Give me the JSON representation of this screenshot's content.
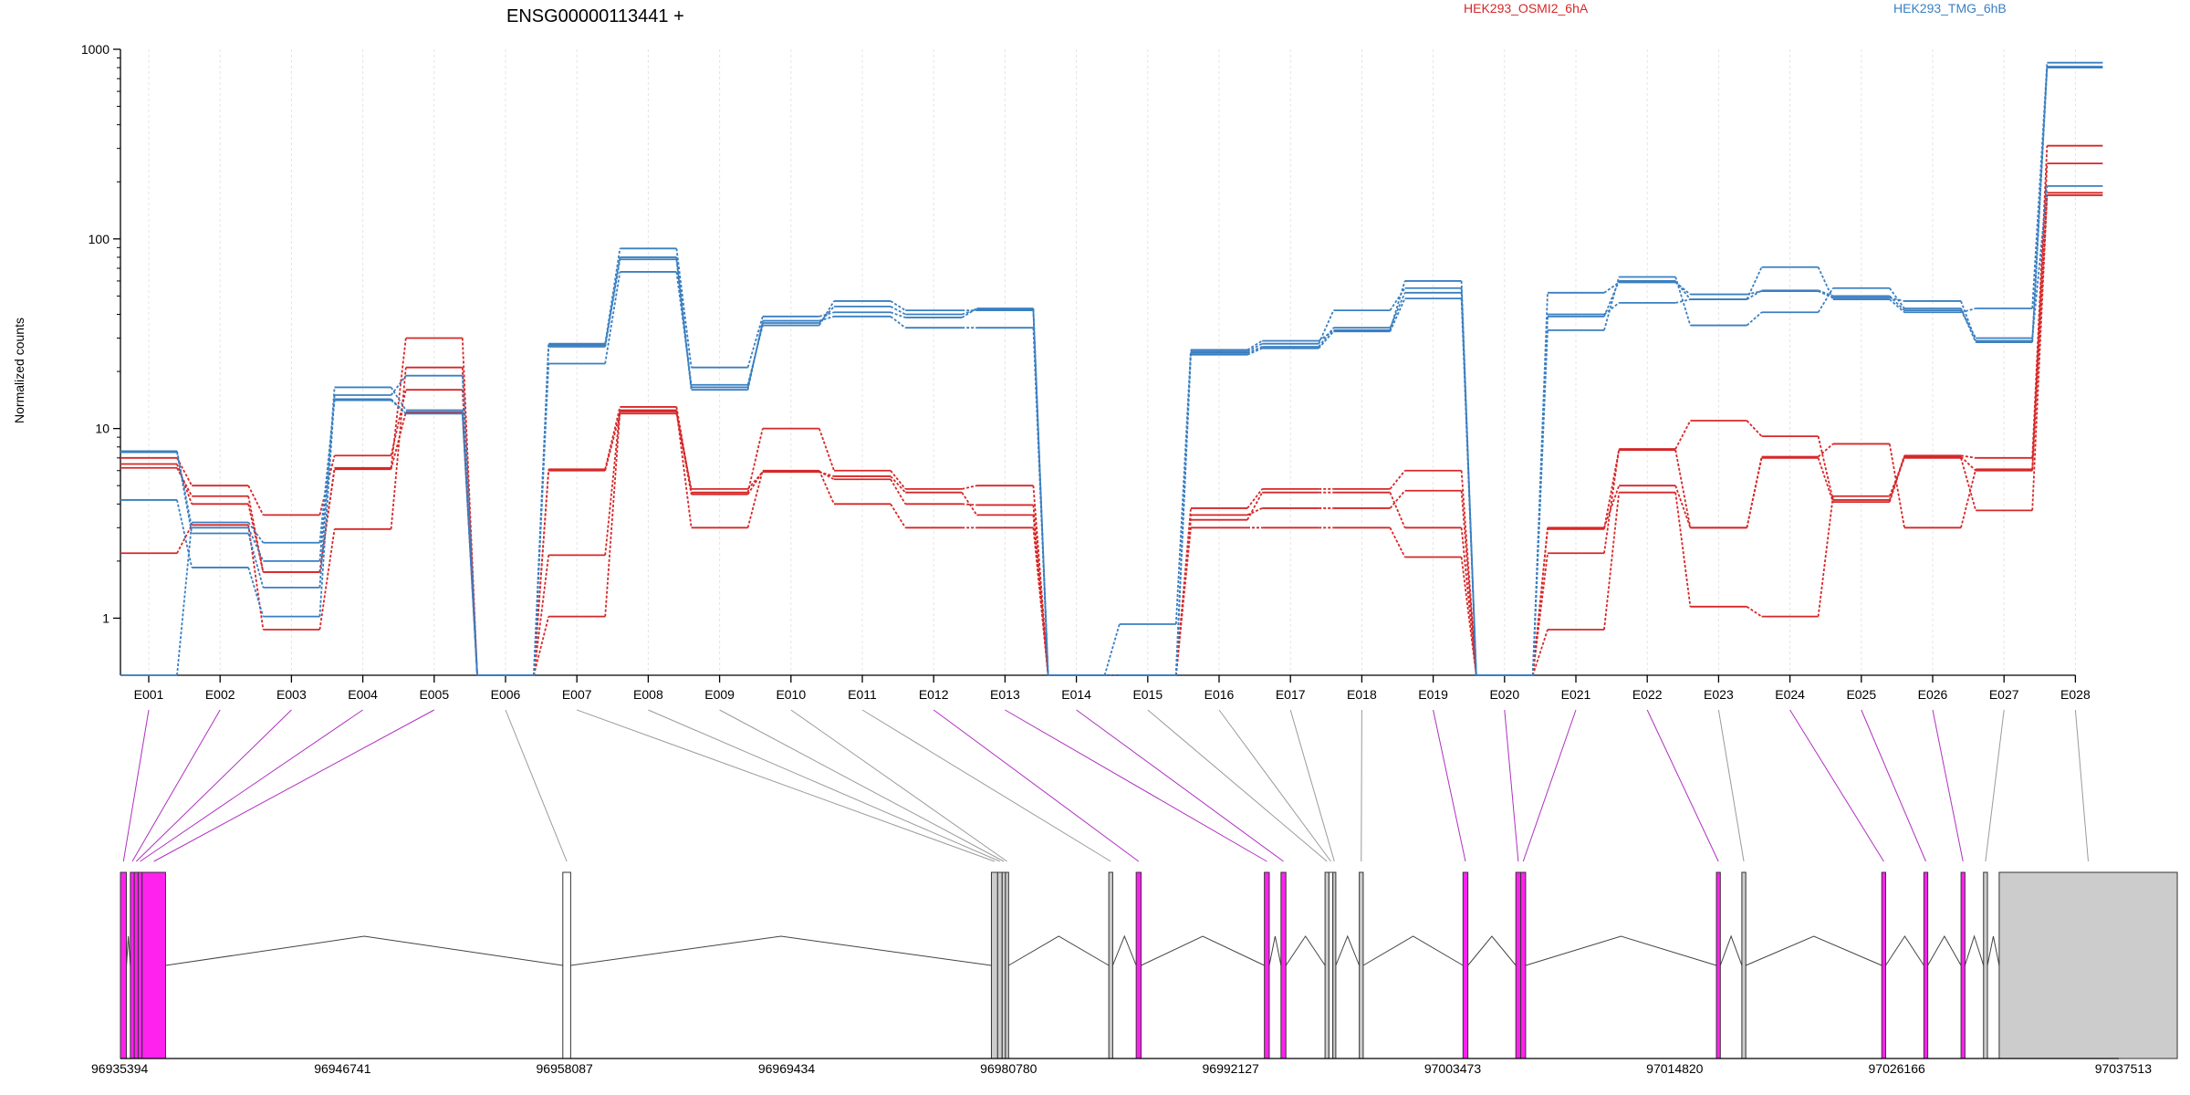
{
  "chart_data": {
    "type": "line",
    "title": "ENSG00000113441 +",
    "ylabel": "Normalized counts",
    "yscale": "log",
    "ylim": [
      0.5,
      1000
    ],
    "yticks": [
      1,
      10,
      100,
      1000
    ],
    "yticklabels": [
      "1",
      "10",
      "100",
      "1000"
    ],
    "categories": [
      "E001",
      "E002",
      "E003",
      "E004",
      "E005",
      "E006",
      "E007",
      "E008",
      "E009",
      "E010",
      "E011",
      "E012",
      "E013",
      "E014",
      "E015",
      "E016",
      "E017",
      "E018",
      "E019",
      "E020",
      "E021",
      "E022",
      "E023",
      "E024",
      "E025",
      "E026",
      "E027",
      "E028"
    ],
    "colors": {
      "HEK293_OSMI2_6hA": "#d62728",
      "HEK293_TMG_6hB": "#3a7fc1",
      "spliced_exon": "#ff22ee",
      "unspliced_exon": "#cccccc"
    },
    "legend": [
      "HEK293_OSMI2_6hA",
      "HEK293_TMG_6hB"
    ],
    "series": [
      {
        "group": "HEK293_OSMI2_6hA",
        "values": [
          6.2,
          4.4,
          1.75,
          6.1,
          12.2,
          0.5,
          1.02,
          12.3,
          4.5,
          5.95,
          5.4,
          4.0,
          3.95,
          0.5,
          0.5,
          3.5,
          3.8,
          3.8,
          4.7,
          0.5,
          0.87,
          4.6,
          1.15,
          1.02,
          4.4,
          7.0,
          3.7,
          170
        ]
      },
      {
        "group": "HEK293_OSMI2_6hA",
        "values": [
          2.2,
          3.1,
          0.87,
          2.95,
          21.0,
          0.5,
          2.15,
          12.5,
          3.0,
          6.0,
          4.0,
          3.0,
          3.0,
          0.5,
          0.5,
          3.0,
          3.0,
          3.0,
          2.1,
          0.5,
          3.0,
          5.0,
          3.0,
          7.1,
          8.3,
          3.0,
          6.1,
          250
        ]
      },
      {
        "group": "HEK293_OSMI2_6hA",
        "values": [
          7.0,
          5.0,
          3.5,
          7.2,
          16.0,
          0.5,
          6.1,
          13.0,
          4.6,
          10.0,
          6.0,
          4.8,
          5.0,
          0.5,
          0.5,
          3.8,
          4.8,
          4.8,
          6.0,
          0.5,
          2.2,
          7.8,
          11.0,
          9.1,
          4.2,
          7.2,
          7.0,
          310
        ]
      },
      {
        "group": "HEK293_OSMI2_6hA",
        "values": [
          6.5,
          4.0,
          1.75,
          6.2,
          30.0,
          0.5,
          6.0,
          12.0,
          4.8,
          5.9,
          5.6,
          4.6,
          3.5,
          0.5,
          0.5,
          3.3,
          4.6,
          4.6,
          3.0,
          0.5,
          2.95,
          7.7,
          3.0,
          7.0,
          4.1,
          7.1,
          6.0,
          175
        ]
      },
      {
        "group": "HEK293_TMG_6hB",
        "values": [
          0.5,
          3.2,
          2.5,
          14.1,
          12.0,
          0.5,
          28.0,
          89.0,
          21.0,
          39.0,
          41.0,
          38.5,
          43.0,
          0.5,
          0.93,
          26.0,
          29.0,
          33.0,
          60.0,
          0.5,
          52.0,
          59.0,
          51.0,
          53.0,
          49.0,
          47.0,
          29.0,
          800
        ]
      },
      {
        "group": "HEK293_TMG_6hB",
        "values": [
          7.5,
          2.8,
          1.45,
          16.5,
          12.5,
          0.5,
          22.0,
          67.0,
          17.0,
          35.0,
          47.0,
          42.0,
          42.0,
          0.5,
          0.5,
          24.5,
          26.5,
          32.5,
          48.5,
          0.5,
          33.0,
          63.0,
          35.0,
          41.0,
          55.0,
          43.0,
          28.5,
          810
        ]
      },
      {
        "group": "HEK293_TMG_6hB",
        "values": [
          4.2,
          1.85,
          1.02,
          15.0,
          19.0,
          0.5,
          27.0,
          78.0,
          16.0,
          37.0,
          39.0,
          34.0,
          34.0,
          0.5,
          0.5,
          25.5,
          28.0,
          42.0,
          55.0,
          0.5,
          40.0,
          46.0,
          48.0,
          71.0,
          48.0,
          41.0,
          43.0,
          850
        ]
      },
      {
        "group": "HEK293_TMG_6hB",
        "values": [
          7.6,
          3.0,
          2.0,
          14.3,
          12.0,
          0.5,
          27.5,
          80.0,
          16.5,
          36.0,
          44.0,
          40.0,
          42.5,
          0.5,
          0.5,
          25.0,
          27.0,
          34.0,
          52.0,
          0.5,
          39.0,
          60.0,
          48.0,
          53.5,
          50.0,
          42.0,
          30.0,
          190
        ]
      }
    ],
    "gene_model": {
      "genomic_ticks": [
        "96935394",
        "96946741",
        "96958087",
        "96969434",
        "96980780",
        "96992127",
        "97003473",
        "97014820",
        "97026166",
        "97037513"
      ],
      "exons": [
        {
          "id": "E001",
          "start": 96935394,
          "end": 96935700,
          "color": "spliced_exon"
        },
        {
          "id": "E002",
          "start": 96935900,
          "end": 96936100,
          "color": "spliced_exon"
        },
        {
          "id": "E003",
          "start": 96936100,
          "end": 96936300,
          "color": "spliced_exon"
        },
        {
          "id": "E004",
          "start": 96936300,
          "end": 96936500,
          "color": "spliced_exon"
        },
        {
          "id": "E005",
          "start": 96936500,
          "end": 96937700,
          "color": "spliced_exon"
        },
        {
          "id": "E006",
          "start": 96958000,
          "end": 96958400,
          "color": "white"
        },
        {
          "id": "E007",
          "start": 96979900,
          "end": 96980220,
          "color": "unspliced_exon"
        },
        {
          "id": "E008",
          "start": 96980220,
          "end": 96980450,
          "color": "unspliced_exon"
        },
        {
          "id": "E009",
          "start": 96980450,
          "end": 96980620,
          "color": "unspliced_exon"
        },
        {
          "id": "E010",
          "start": 96980620,
          "end": 96980780,
          "color": "unspliced_exon"
        },
        {
          "id": "E011",
          "start": 96985900,
          "end": 96986100,
          "color": "unspliced_exon"
        },
        {
          "id": "E012",
          "start": 96987300,
          "end": 96987550,
          "color": "spliced_exon"
        },
        {
          "id": "E013",
          "start": 96993850,
          "end": 96994100,
          "color": "spliced_exon"
        },
        {
          "id": "E014",
          "start": 96994700,
          "end": 96994950,
          "color": "spliced_exon"
        },
        {
          "id": "E015",
          "start": 96996950,
          "end": 96997150,
          "color": "unspliced_exon"
        },
        {
          "id": "E016",
          "start": 96997150,
          "end": 96997350,
          "color": "white"
        },
        {
          "id": "E017",
          "start": 96997350,
          "end": 96997500,
          "color": "unspliced_exon"
        },
        {
          "id": "E018",
          "start": 96998700,
          "end": 96998900,
          "color": "unspliced_exon"
        },
        {
          "id": "E019",
          "start": 97004000,
          "end": 97004250,
          "color": "spliced_exon"
        },
        {
          "id": "E020",
          "start": 97006700,
          "end": 97006950,
          "color": "spliced_exon"
        },
        {
          "id": "E021",
          "start": 97006950,
          "end": 97007200,
          "color": "spliced_exon"
        },
        {
          "id": "E022",
          "start": 97016950,
          "end": 97017150,
          "color": "spliced_exon"
        },
        {
          "id": "E023",
          "start": 97018250,
          "end": 97018450,
          "color": "unspliced_exon"
        },
        {
          "id": "E024",
          "start": 97025400,
          "end": 97025600,
          "color": "spliced_exon"
        },
        {
          "id": "E025",
          "start": 97027550,
          "end": 97027750,
          "color": "spliced_exon"
        },
        {
          "id": "E026",
          "start": 97029450,
          "end": 97029650,
          "color": "spliced_exon"
        },
        {
          "id": "E027",
          "start": 97030600,
          "end": 97030800,
          "color": "unspliced_exon"
        },
        {
          "id": "E028",
          "start": 97031400,
          "end": 97040500,
          "color": "unspliced_exon"
        }
      ]
    }
  }
}
